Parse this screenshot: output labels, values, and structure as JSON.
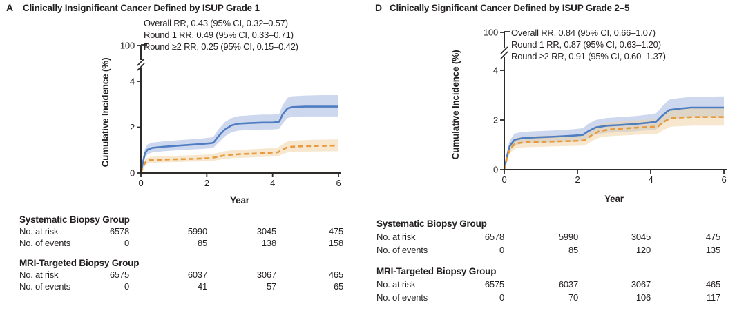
{
  "colors": {
    "text": "#231f20",
    "axis": "#2d2a28",
    "background": "#ffffff"
  },
  "panels": [
    {
      "letter": "A",
      "chart_data": {
        "type": "line",
        "title": "Clinically Insignificant Cancer Defined by ISUP Grade 1",
        "annotations": [
          "Overall RR, 0.43 (95% CI, 0.32–0.57)",
          "Round 1 RR, 0.49 (95% CI, 0.33–0.71)",
          "Round ≥2 RR, 0.25 (95% CI, 0.15–0.42)"
        ],
        "xlabel": "Year",
        "ylabel": "Cumulative Incidence (%)",
        "xlim": [
          0,
          6
        ],
        "x_ticks": [
          0,
          2,
          4,
          6
        ],
        "y_ticks": [
          0,
          2,
          4
        ],
        "axis_break": true,
        "y_axis_break_label": "100",
        "legend": "none",
        "series": [
          {
            "name": "Systematic Biopsy Group",
            "style": "solid",
            "color": "#4f7dc1",
            "band_color": "#cdd8ee",
            "band_opacity": 1,
            "x": [
              0,
              0.06,
              0.12,
              0.2,
              0.35,
              0.7,
              1.2,
              1.8,
              2.1,
              2.2,
              2.35,
              2.55,
              2.75,
              2.95,
              3.3,
              3.7,
              4.0,
              4.2,
              4.3,
              4.45,
              4.6,
              5.0,
              5.5,
              6.0
            ],
            "y": [
              0,
              0.45,
              0.85,
              1.02,
              1.1,
              1.15,
              1.2,
              1.26,
              1.3,
              1.32,
              1.6,
              1.9,
              2.08,
              2.15,
              2.18,
              2.2,
              2.2,
              2.24,
              2.55,
              2.82,
              2.88,
              2.9,
              2.9,
              2.9
            ],
            "lo": [
              0,
              0.3,
              0.65,
              0.82,
              0.9,
              0.95,
              1.0,
              1.05,
              1.08,
              1.1,
              1.32,
              1.6,
              1.78,
              1.85,
              1.88,
              1.9,
              1.9,
              1.93,
              2.15,
              2.4,
              2.45,
              2.47,
              2.47,
              2.47
            ],
            "hi": [
              0,
              0.6,
              1.05,
              1.25,
              1.33,
              1.38,
              1.44,
              1.5,
              1.55,
              1.57,
              1.9,
              2.22,
              2.4,
              2.48,
              2.52,
              2.55,
              2.55,
              2.58,
              2.95,
              3.28,
              3.35,
              3.38,
              3.4,
              3.4
            ]
          },
          {
            "name": "MRI-Targeted Biopsy Group",
            "style": "dashed",
            "color": "#e79b3e",
            "band_color": "#efd3a6",
            "band_opacity": 0.55,
            "x": [
              0,
              0.06,
              0.14,
              0.25,
              0.5,
              1.0,
              1.6,
              2.1,
              2.3,
              2.5,
              2.75,
              3.1,
              3.5,
              3.9,
              4.15,
              4.3,
              4.45,
              4.7,
              5.2,
              6.0
            ],
            "y": [
              0,
              0.25,
              0.48,
              0.56,
              0.58,
              0.6,
              0.62,
              0.65,
              0.7,
              0.76,
              0.8,
              0.83,
              0.85,
              0.88,
              0.9,
              1.02,
              1.13,
              1.16,
              1.18,
              1.2
            ],
            "lo": [
              0,
              0.15,
              0.36,
              0.44,
              0.46,
              0.48,
              0.5,
              0.52,
              0.56,
              0.61,
              0.65,
              0.67,
              0.69,
              0.71,
              0.73,
              0.82,
              0.9,
              0.93,
              0.94,
              0.95
            ],
            "hi": [
              0,
              0.38,
              0.62,
              0.7,
              0.73,
              0.75,
              0.78,
              0.81,
              0.87,
              0.94,
              0.99,
              1.02,
              1.05,
              1.08,
              1.11,
              1.25,
              1.38,
              1.42,
              1.45,
              1.47
            ]
          }
        ]
      },
      "risk_table": {
        "groups": [
          {
            "name": "Systematic Biopsy Group",
            "rows": [
              {
                "label": "No. at risk",
                "values": [
                  "6578",
                  "5990",
                  "3045",
                  "475"
                ]
              },
              {
                "label": "No. of events",
                "values": [
                  "0",
                  "85",
                  "138",
                  "158"
                ]
              }
            ]
          },
          {
            "name": "MRI-Targeted Biopsy Group",
            "rows": [
              {
                "label": "No. at risk",
                "values": [
                  "6575",
                  "6037",
                  "3067",
                  "465"
                ]
              },
              {
                "label": "No. of events",
                "values": [
                  "0",
                  "41",
                  "57",
                  "65"
                ]
              }
            ]
          }
        ]
      }
    },
    {
      "letter": "D",
      "chart_data": {
        "type": "line",
        "title": "Clinically Significant Cancer Defined by ISUP Grade 2–5",
        "annotations": [
          "Overall RR, 0.84 (95% CI, 0.66–1.07)",
          "Round 1 RR, 0.87 (95% CI, 0.63–1.20)",
          "Round ≥2 RR, 0.91 (95% CI, 0.60–1.37)"
        ],
        "xlabel": "Year",
        "ylabel": "Cumulative Incidence (%)",
        "xlim": [
          0,
          6
        ],
        "x_ticks": [
          0,
          2,
          4,
          6
        ],
        "y_ticks": [
          0,
          2,
          4
        ],
        "axis_break": true,
        "y_axis_break_label": "100",
        "legend": "none",
        "series": [
          {
            "name": "Systematic Biopsy Group",
            "style": "solid",
            "color": "#4f7dc1",
            "band_color": "#cdd8ee",
            "band_opacity": 1,
            "x": [
              0,
              0.07,
              0.15,
              0.28,
              0.5,
              0.9,
              1.4,
              1.9,
              2.15,
              2.3,
              2.5,
              2.8,
              3.2,
              3.6,
              3.95,
              4.15,
              4.3,
              4.5,
              4.75,
              5.1,
              6.0
            ],
            "y": [
              0,
              0.5,
              0.95,
              1.2,
              1.27,
              1.3,
              1.33,
              1.37,
              1.4,
              1.55,
              1.7,
              1.77,
              1.8,
              1.84,
              1.89,
              1.93,
              2.15,
              2.4,
              2.45,
              2.5,
              2.5
            ],
            "lo": [
              0,
              0.35,
              0.75,
              0.98,
              1.05,
              1.08,
              1.1,
              1.13,
              1.16,
              1.28,
              1.42,
              1.48,
              1.51,
              1.55,
              1.59,
              1.62,
              1.8,
              2.02,
              2.06,
              2.1,
              2.1
            ],
            "hi": [
              0,
              0.68,
              1.18,
              1.45,
              1.52,
              1.55,
              1.58,
              1.63,
              1.67,
              1.85,
              2.0,
              2.08,
              2.12,
              2.16,
              2.22,
              2.27,
              2.52,
              2.82,
              2.88,
              2.93,
              2.95
            ]
          },
          {
            "name": "MRI-Targeted Biopsy Group",
            "style": "dashed",
            "color": "#e79b3e",
            "band_color": "#efd3a6",
            "band_opacity": 0.55,
            "x": [
              0,
              0.07,
              0.16,
              0.3,
              0.55,
              1.0,
              1.5,
              2.0,
              2.2,
              2.4,
              2.6,
              2.9,
              3.3,
              3.7,
              4.0,
              4.2,
              4.35,
              4.55,
              4.8,
              5.2,
              6.0
            ],
            "y": [
              0,
              0.45,
              0.85,
              1.05,
              1.1,
              1.12,
              1.14,
              1.16,
              1.18,
              1.4,
              1.55,
              1.62,
              1.66,
              1.7,
              1.72,
              1.74,
              1.92,
              2.08,
              2.1,
              2.12,
              2.12
            ],
            "lo": [
              0,
              0.3,
              0.67,
              0.85,
              0.9,
              0.92,
              0.94,
              0.96,
              0.97,
              1.16,
              1.29,
              1.35,
              1.38,
              1.41,
              1.43,
              1.45,
              1.6,
              1.73,
              1.75,
              1.77,
              1.77
            ],
            "hi": [
              0,
              0.62,
              1.06,
              1.28,
              1.33,
              1.36,
              1.38,
              1.4,
              1.42,
              1.66,
              1.83,
              1.9,
              1.95,
              2.0,
              2.02,
              2.05,
              2.26,
              2.44,
              2.47,
              2.5,
              2.5
            ]
          }
        ]
      },
      "risk_table": {
        "groups": [
          {
            "name": "Systematic Biopsy Group",
            "rows": [
              {
                "label": "No. at risk",
                "values": [
                  "6578",
                  "5990",
                  "3045",
                  "475"
                ]
              },
              {
                "label": "No. of events",
                "values": [
                  "0",
                  "85",
                  "120",
                  "135"
                ]
              }
            ]
          },
          {
            "name": "MRI-Targeted Biopsy Group",
            "rows": [
              {
                "label": "No. at risk",
                "values": [
                  "6575",
                  "6037",
                  "3067",
                  "465"
                ]
              },
              {
                "label": "No. of events",
                "values": [
                  "0",
                  "70",
                  "106",
                  "117"
                ]
              }
            ]
          }
        ]
      }
    }
  ]
}
